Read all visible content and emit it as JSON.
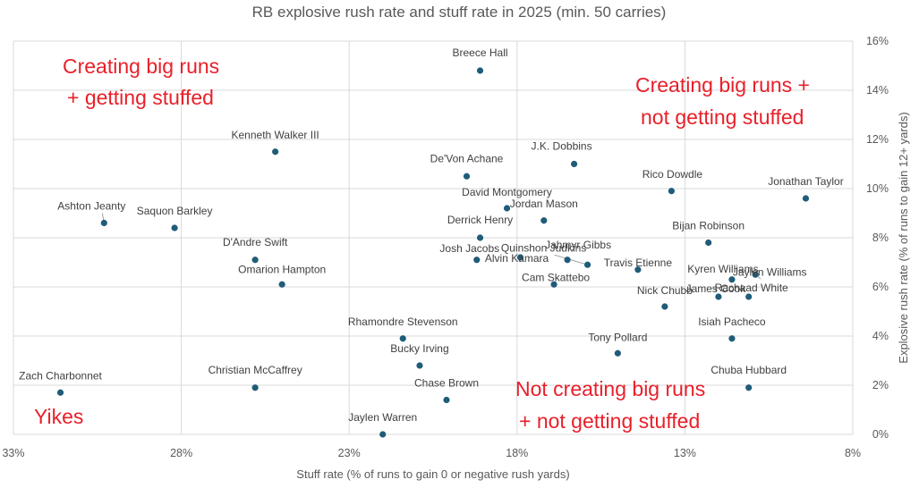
{
  "chart_data": {
    "type": "scatter",
    "title": "RB explosive rush rate and stuff rate in 2025 (min. 50 carries)",
    "xlabel": "Stuff rate (% of runs to gain 0 or negative rush yards)",
    "ylabel": "Explosive rush rate (% of runs to gain 12+ yards)",
    "xlim": [
      33,
      8
    ],
    "x_reversed": true,
    "ylim": [
      0,
      16
    ],
    "x_ticks": [
      "33%",
      "28%",
      "23%",
      "18%",
      "13%",
      "8%"
    ],
    "y_ticks": [
      "0%",
      "2%",
      "4%",
      "6%",
      "8%",
      "10%",
      "12%",
      "14%",
      "16%"
    ],
    "grid": true,
    "y_axis_side": "right",
    "points": [
      {
        "name": "Breece Hall",
        "x": 19.1,
        "y": 14.8
      },
      {
        "name": "Kenneth Walker III",
        "x": 25.2,
        "y": 11.5
      },
      {
        "name": "J.K. Dobbins",
        "x": 16.3,
        "y": 11.0
      },
      {
        "name": "De'Von Achane",
        "x": 19.5,
        "y": 10.5
      },
      {
        "name": "Rico Dowdle",
        "x": 13.4,
        "y": 9.9
      },
      {
        "name": "Jonathan Taylor",
        "x": 9.4,
        "y": 9.6
      },
      {
        "name": "David Montgomery",
        "x": 18.3,
        "y": 9.2
      },
      {
        "name": "Jordan Mason",
        "x": 17.2,
        "y": 8.7
      },
      {
        "name": "Ashton Jeanty",
        "x": 30.3,
        "y": 8.6
      },
      {
        "name": "Saquon Barkley",
        "x": 28.2,
        "y": 8.4
      },
      {
        "name": "Derrick Henry",
        "x": 19.1,
        "y": 8.0
      },
      {
        "name": "Bijan Robinson",
        "x": 12.3,
        "y": 7.8
      },
      {
        "name": "Alvin Kamara",
        "x": 17.9,
        "y": 7.2
      },
      {
        "name": "Jahmyr Gibbs",
        "x": 16.5,
        "y": 7.1
      },
      {
        "name": "Josh Jacobs",
        "x": 19.2,
        "y": 7.1
      },
      {
        "name": "D'Andre Swift",
        "x": 25.8,
        "y": 7.1
      },
      {
        "name": "Quinshon Judkins",
        "x": 15.9,
        "y": 6.9
      },
      {
        "name": "Travis Etienne",
        "x": 14.4,
        "y": 6.7
      },
      {
        "name": "Jaylen Williams",
        "x": 10.9,
        "y": 6.5
      },
      {
        "name": "Kyren Williams",
        "x": 11.6,
        "y": 6.3
      },
      {
        "name": "Cam Skattebo",
        "x": 16.9,
        "y": 6.1
      },
      {
        "name": "Omarion Hampton",
        "x": 25.0,
        "y": 6.1
      },
      {
        "name": "Rachaad White",
        "x": 11.1,
        "y": 5.6
      },
      {
        "name": "James Cook",
        "x": 12.0,
        "y": 5.6
      },
      {
        "name": "Nick Chubb",
        "x": 13.6,
        "y": 5.2
      },
      {
        "name": "Rhamondre Stevenson",
        "x": 21.4,
        "y": 3.9
      },
      {
        "name": "Isiah Pacheco",
        "x": 11.6,
        "y": 3.9
      },
      {
        "name": "Tony Pollard",
        "x": 15.0,
        "y": 3.3
      },
      {
        "name": "Bucky Irving",
        "x": 20.9,
        "y": 2.8
      },
      {
        "name": "Christian McCaffrey",
        "x": 25.8,
        "y": 1.9
      },
      {
        "name": "Chuba Hubbard",
        "x": 11.1,
        "y": 1.9
      },
      {
        "name": "Zach Charbonnet",
        "x": 31.6,
        "y": 1.7
      },
      {
        "name": "Chase Brown",
        "x": 20.1,
        "y": 1.4
      },
      {
        "name": "Jaylen Warren",
        "x": 22.0,
        "y": 0.0
      }
    ],
    "annotations": [
      {
        "text": "Creating big runs",
        "quadrant": "top-left"
      },
      {
        "text": "+ getting stuffed",
        "quadrant": "top-left"
      },
      {
        "text": "Creating big runs +",
        "quadrant": "top-right"
      },
      {
        "text": "not getting stuffed",
        "quadrant": "top-right"
      },
      {
        "text": "Yikes",
        "quadrant": "bottom-left"
      },
      {
        "text": "Not creating big runs",
        "quadrant": "bottom-right"
      },
      {
        "text": "+ not getting stuffed",
        "quadrant": "bottom-right"
      }
    ],
    "colors": {
      "points": "#1f5c7a",
      "annotations": "#e8202a",
      "grid": "#d9d9d9",
      "text": "#595959"
    }
  }
}
